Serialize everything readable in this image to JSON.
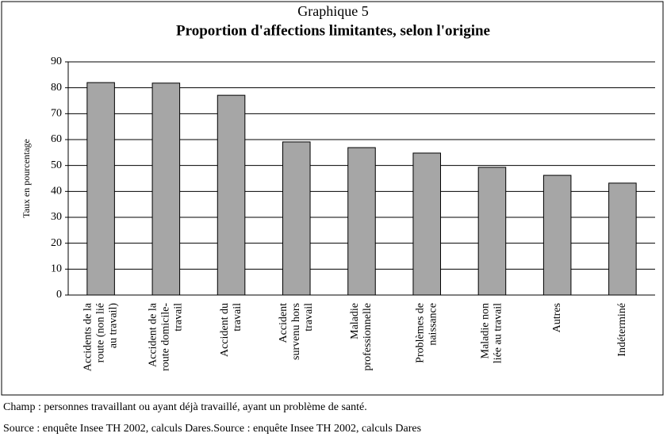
{
  "chart_data": {
    "type": "bar",
    "title": "Graphique 5",
    "subtitle": "Proportion d'affections limitantes, selon l'origine",
    "y_label": "Taux en pourcentage",
    "categories": [
      [
        "Accidents de la",
        "route (non lié",
        "au travail)"
      ],
      [
        "Accident de la",
        "route  domicile-",
        "travail"
      ],
      [
        "Accident du",
        "travail"
      ],
      [
        "Accident",
        "survenu hors",
        "travail"
      ],
      [
        "Maladie",
        "professionnelle"
      ],
      [
        "Problèmes de",
        "naissance"
      ],
      [
        "Maladie non",
        "liée au travail"
      ],
      [
        "Autres"
      ],
      [
        "Indéterminé"
      ]
    ],
    "values": [
      82.0,
      81.8,
      77.1,
      59.1,
      56.9,
      54.8,
      49.3,
      46.2,
      43.2
    ],
    "color": "#a6a6a6",
    "ylim": [
      0,
      90
    ],
    "yticks": [
      0,
      10,
      20,
      30,
      40,
      50,
      60,
      70,
      80,
      90
    ],
    "grid": true,
    "notes": [
      "Champ : personnes travaillant ou ayant déjà travaillé, ayant un problème de santé.",
      "Source : enquête Insee TH 2002, calculs Dares.Source : enquête Insee TH 2002, calculs Dares"
    ]
  }
}
